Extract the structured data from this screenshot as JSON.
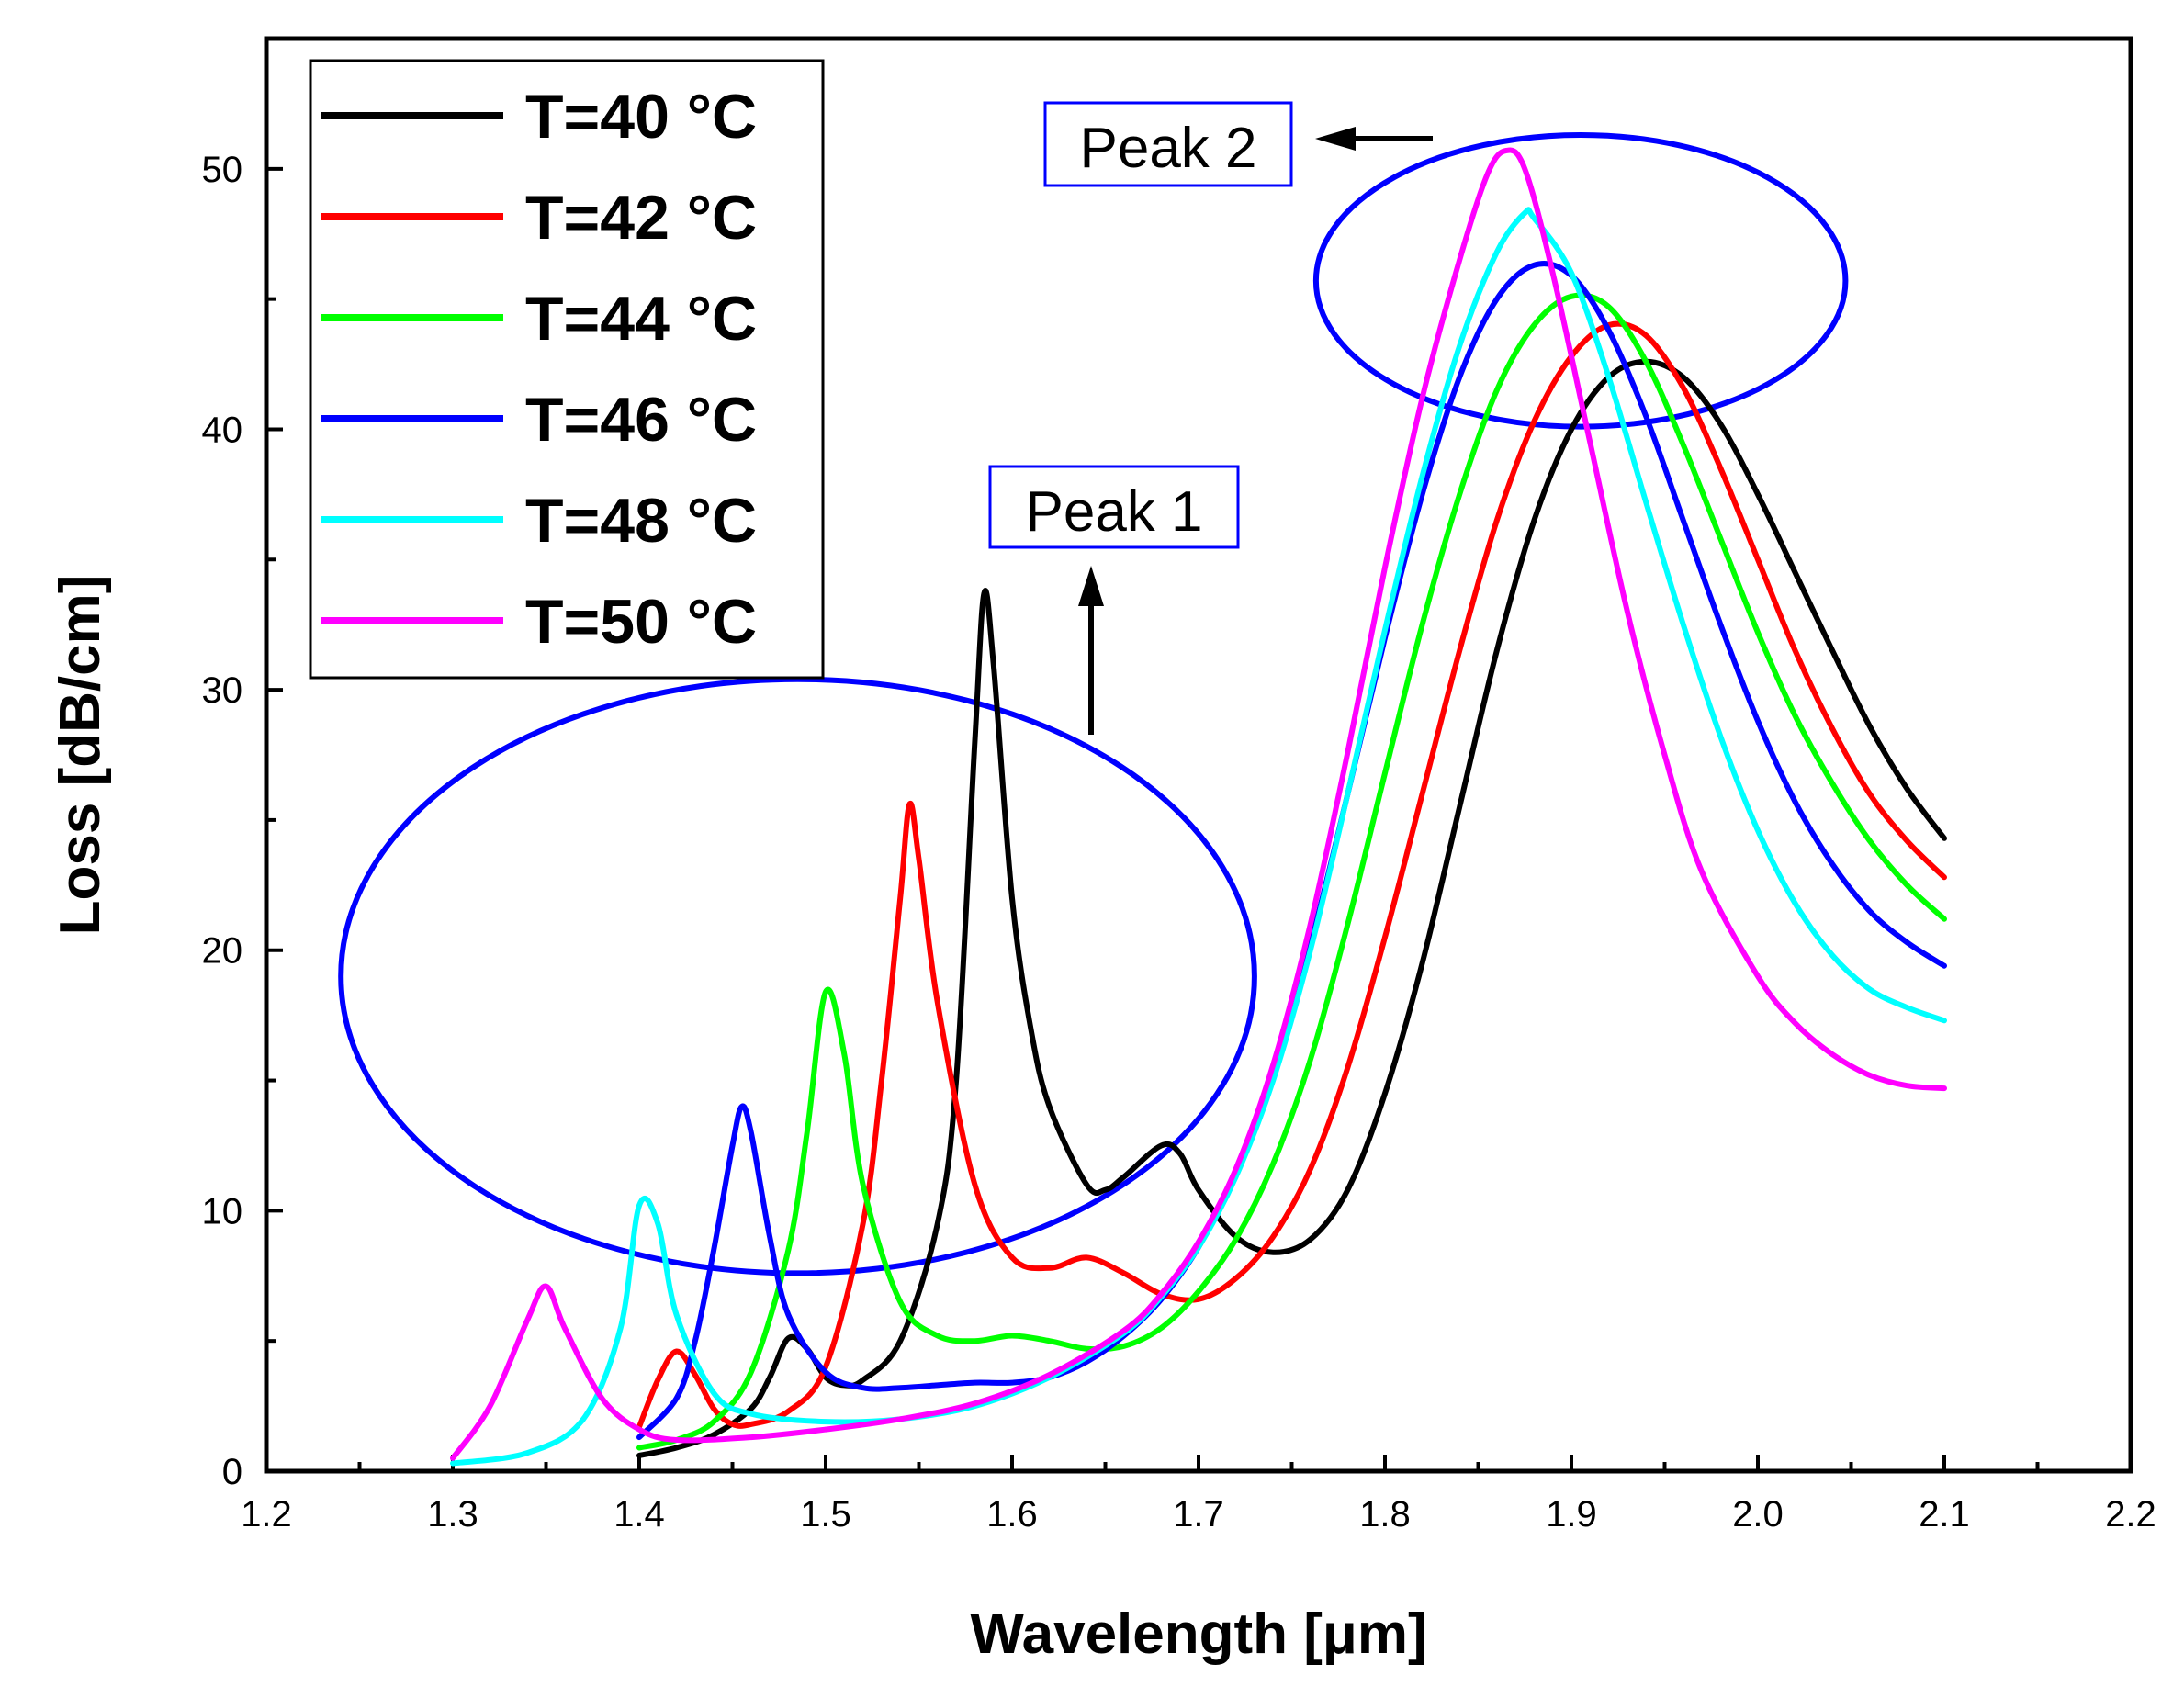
{
  "chart_data": {
    "type": "line",
    "title": "",
    "xlabel": "Wavelength [μm]",
    "ylabel": "Loss [dB/cm]",
    "xlim": [
      1.2,
      2.2
    ],
    "ylim": [
      0,
      55
    ],
    "x_ticks": [
      "1.2",
      "1.3",
      "1.4",
      "1.5",
      "1.6",
      "1.7",
      "1.8",
      "1.9",
      "2.0",
      "2.1",
      "2.2"
    ],
    "y_ticks": [
      "0",
      "10",
      "20",
      "30",
      "40",
      "50"
    ],
    "grid": false,
    "legend_position": "top-left",
    "series": [
      {
        "name": "T=40 °C",
        "color": "#000000",
        "points": [
          [
            1.4,
            0.6
          ],
          [
            1.42,
            0.9
          ],
          [
            1.44,
            1.4
          ],
          [
            1.46,
            2.4
          ],
          [
            1.47,
            3.6
          ],
          [
            1.48,
            5.1
          ],
          [
            1.49,
            4.7
          ],
          [
            1.5,
            3.6
          ],
          [
            1.51,
            3.3
          ],
          [
            1.52,
            3.5
          ],
          [
            1.54,
            5.0
          ],
          [
            1.56,
            9.5
          ],
          [
            1.57,
            15
          ],
          [
            1.58,
            28
          ],
          [
            1.585,
            33.7
          ],
          [
            1.59,
            31
          ],
          [
            1.6,
            22
          ],
          [
            1.61,
            17
          ],
          [
            1.62,
            14
          ],
          [
            1.64,
            11
          ],
          [
            1.65,
            10.8
          ],
          [
            1.66,
            11.3
          ],
          [
            1.68,
            12.5
          ],
          [
            1.69,
            12.2
          ],
          [
            1.7,
            10.8
          ],
          [
            1.72,
            9.0
          ],
          [
            1.74,
            8.4
          ],
          [
            1.76,
            8.9
          ],
          [
            1.78,
            10.8
          ],
          [
            1.8,
            14.5
          ],
          [
            1.82,
            19.5
          ],
          [
            1.84,
            25.5
          ],
          [
            1.86,
            31.5
          ],
          [
            1.88,
            36.5
          ],
          [
            1.9,
            40.0
          ],
          [
            1.92,
            42.0
          ],
          [
            1.94,
            42.6
          ],
          [
            1.96,
            42.0
          ],
          [
            1.98,
            40.2
          ],
          [
            2.0,
            37.5
          ],
          [
            2.02,
            34.5
          ],
          [
            2.04,
            31.5
          ],
          [
            2.06,
            28.6
          ],
          [
            2.08,
            26.2
          ],
          [
            2.1,
            24.3
          ]
        ]
      },
      {
        "name": "T=42 °C",
        "color": "#ff0000",
        "points": [
          [
            1.4,
            1.7
          ],
          [
            1.41,
            3.5
          ],
          [
            1.42,
            4.6
          ],
          [
            1.43,
            3.7
          ],
          [
            1.44,
            2.4
          ],
          [
            1.45,
            1.8
          ],
          [
            1.46,
            1.8
          ],
          [
            1.48,
            2.3
          ],
          [
            1.5,
            4.0
          ],
          [
            1.52,
            9.5
          ],
          [
            1.53,
            15
          ],
          [
            1.54,
            22
          ],
          [
            1.545,
            25.6
          ],
          [
            1.55,
            23.5
          ],
          [
            1.56,
            18
          ],
          [
            1.58,
            11
          ],
          [
            1.6,
            8.2
          ],
          [
            1.62,
            7.8
          ],
          [
            1.64,
            8.2
          ],
          [
            1.66,
            7.6
          ],
          [
            1.68,
            6.8
          ],
          [
            1.7,
            6.6
          ],
          [
            1.72,
            7.4
          ],
          [
            1.74,
            9.0
          ],
          [
            1.76,
            11.6
          ],
          [
            1.78,
            15.5
          ],
          [
            1.8,
            20.5
          ],
          [
            1.82,
            26.0
          ],
          [
            1.84,
            31.5
          ],
          [
            1.86,
            36.5
          ],
          [
            1.88,
            40.3
          ],
          [
            1.9,
            42.8
          ],
          [
            1.92,
            44.0
          ],
          [
            1.94,
            43.6
          ],
          [
            1.96,
            41.6
          ],
          [
            1.98,
            38.5
          ],
          [
            2.0,
            35.0
          ],
          [
            2.02,
            31.5
          ],
          [
            2.04,
            28.5
          ],
          [
            2.06,
            26.0
          ],
          [
            2.08,
            24.2
          ],
          [
            2.1,
            22.8
          ]
        ]
      },
      {
        "name": "T=44 °C",
        "color": "#00ff00",
        "points": [
          [
            1.4,
            0.9
          ],
          [
            1.42,
            1.2
          ],
          [
            1.44,
            1.9
          ],
          [
            1.46,
            3.8
          ],
          [
            1.48,
            8.5
          ],
          [
            1.49,
            13
          ],
          [
            1.5,
            18.4
          ],
          [
            1.51,
            16
          ],
          [
            1.52,
            11
          ],
          [
            1.54,
            6.5
          ],
          [
            1.56,
            5.2
          ],
          [
            1.58,
            5.0
          ],
          [
            1.6,
            5.2
          ],
          [
            1.62,
            5.0
          ],
          [
            1.64,
            4.7
          ],
          [
            1.66,
            4.8
          ],
          [
            1.68,
            5.5
          ],
          [
            1.7,
            6.9
          ],
          [
            1.72,
            8.9
          ],
          [
            1.74,
            11.8
          ],
          [
            1.76,
            15.8
          ],
          [
            1.78,
            21.0
          ],
          [
            1.8,
            26.8
          ],
          [
            1.82,
            32.5
          ],
          [
            1.84,
            37.5
          ],
          [
            1.86,
            41.5
          ],
          [
            1.88,
            44.0
          ],
          [
            1.9,
            45.1
          ],
          [
            1.92,
            44.7
          ],
          [
            1.94,
            42.6
          ],
          [
            1.96,
            39.4
          ],
          [
            1.98,
            35.8
          ],
          [
            2.0,
            32.2
          ],
          [
            2.02,
            29.0
          ],
          [
            2.04,
            26.4
          ],
          [
            2.06,
            24.2
          ],
          [
            2.08,
            22.5
          ],
          [
            2.1,
            21.2
          ]
        ]
      },
      {
        "name": "T=46 °C",
        "color": "#0000ff",
        "points": [
          [
            1.4,
            1.3
          ],
          [
            1.42,
            2.8
          ],
          [
            1.43,
            5.0
          ],
          [
            1.44,
            8.5
          ],
          [
            1.45,
            12.5
          ],
          [
            1.455,
            14.0
          ],
          [
            1.46,
            13.0
          ],
          [
            1.47,
            9.0
          ],
          [
            1.48,
            6.0
          ],
          [
            1.5,
            3.8
          ],
          [
            1.52,
            3.2
          ],
          [
            1.54,
            3.2
          ],
          [
            1.56,
            3.3
          ],
          [
            1.58,
            3.4
          ],
          [
            1.6,
            3.4
          ],
          [
            1.62,
            3.6
          ],
          [
            1.64,
            4.2
          ],
          [
            1.66,
            5.2
          ],
          [
            1.68,
            6.6
          ],
          [
            1.7,
            8.6
          ],
          [
            1.72,
            11.4
          ],
          [
            1.74,
            15.2
          ],
          [
            1.76,
            20.2
          ],
          [
            1.78,
            26.0
          ],
          [
            1.8,
            32.0
          ],
          [
            1.82,
            37.5
          ],
          [
            1.84,
            42.0
          ],
          [
            1.86,
            45.0
          ],
          [
            1.88,
            46.3
          ],
          [
            1.9,
            45.9
          ],
          [
            1.92,
            43.8
          ],
          [
            1.94,
            40.5
          ],
          [
            1.96,
            36.5
          ],
          [
            1.98,
            32.5
          ],
          [
            2.0,
            28.8
          ],
          [
            2.02,
            25.7
          ],
          [
            2.04,
            23.3
          ],
          [
            2.06,
            21.5
          ],
          [
            2.08,
            20.3
          ],
          [
            2.1,
            19.4
          ]
        ]
      },
      {
        "name": "T=48 °C",
        "color": "#00ffff",
        "points": [
          [
            1.3,
            0.3
          ],
          [
            1.34,
            0.7
          ],
          [
            1.37,
            2.0
          ],
          [
            1.39,
            5.5
          ],
          [
            1.4,
            10.2
          ],
          [
            1.41,
            9.5
          ],
          [
            1.42,
            6.0
          ],
          [
            1.44,
            3.0
          ],
          [
            1.46,
            2.2
          ],
          [
            1.5,
            1.9
          ],
          [
            1.54,
            2.0
          ],
          [
            1.58,
            2.5
          ],
          [
            1.62,
            3.6
          ],
          [
            1.66,
            5.3
          ],
          [
            1.68,
            6.7
          ],
          [
            1.7,
            8.6
          ],
          [
            1.72,
            11.3
          ],
          [
            1.74,
            15.0
          ],
          [
            1.76,
            20.0
          ],
          [
            1.78,
            26.0
          ],
          [
            1.8,
            32.3
          ],
          [
            1.82,
            38.2
          ],
          [
            1.84,
            43.2
          ],
          [
            1.86,
            46.8
          ],
          [
            1.875,
            48.3
          ],
          [
            1.88,
            48.1
          ],
          [
            1.9,
            46.0
          ],
          [
            1.92,
            42.0
          ],
          [
            1.94,
            37.2
          ],
          [
            1.96,
            32.5
          ],
          [
            1.98,
            28.2
          ],
          [
            2.0,
            24.6
          ],
          [
            2.02,
            21.8
          ],
          [
            2.04,
            19.8
          ],
          [
            2.06,
            18.5
          ],
          [
            2.08,
            17.8
          ],
          [
            2.1,
            17.3
          ]
        ]
      },
      {
        "name": "T=50 °C",
        "color": "#ff00ff",
        "points": [
          [
            1.3,
            0.5
          ],
          [
            1.32,
            2.5
          ],
          [
            1.34,
            5.8
          ],
          [
            1.35,
            7.1
          ],
          [
            1.36,
            5.5
          ],
          [
            1.38,
            2.8
          ],
          [
            1.4,
            1.6
          ],
          [
            1.42,
            1.2
          ],
          [
            1.46,
            1.3
          ],
          [
            1.5,
            1.6
          ],
          [
            1.54,
            2.0
          ],
          [
            1.58,
            2.6
          ],
          [
            1.62,
            3.7
          ],
          [
            1.66,
            5.4
          ],
          [
            1.68,
            6.8
          ],
          [
            1.7,
            8.8
          ],
          [
            1.72,
            11.6
          ],
          [
            1.74,
            15.6
          ],
          [
            1.76,
            21.0
          ],
          [
            1.78,
            27.6
          ],
          [
            1.8,
            34.7
          ],
          [
            1.82,
            41.2
          ],
          [
            1.84,
            46.5
          ],
          [
            1.855,
            49.8
          ],
          [
            1.865,
            50.7
          ],
          [
            1.875,
            50.0
          ],
          [
            1.89,
            46.0
          ],
          [
            1.91,
            39.5
          ],
          [
            1.93,
            33.0
          ],
          [
            1.95,
            27.5
          ],
          [
            1.97,
            23.0
          ],
          [
            2.0,
            19.0
          ],
          [
            2.02,
            17.2
          ],
          [
            2.04,
            16.0
          ],
          [
            2.06,
            15.2
          ],
          [
            2.08,
            14.8
          ],
          [
            2.1,
            14.7
          ]
        ]
      }
    ],
    "annotations": [
      {
        "text": "Peak 1",
        "box_color": "#0000ff",
        "arrow_direction": "up"
      },
      {
        "text": "Peak 2",
        "box_color": "#0000ff",
        "arrow_direction": "left"
      }
    ],
    "highlight_ellipses": [
      {
        "name": "peak-1-ellipse",
        "cx": 1.485,
        "cy": 19,
        "rx": 0.245,
        "ry": 11.4,
        "color": "#0000ff"
      },
      {
        "name": "peak-2-ellipse",
        "cx": 1.905,
        "cy": 45.7,
        "rx": 0.142,
        "ry": 5.6,
        "color": "#0000ff"
      }
    ]
  }
}
